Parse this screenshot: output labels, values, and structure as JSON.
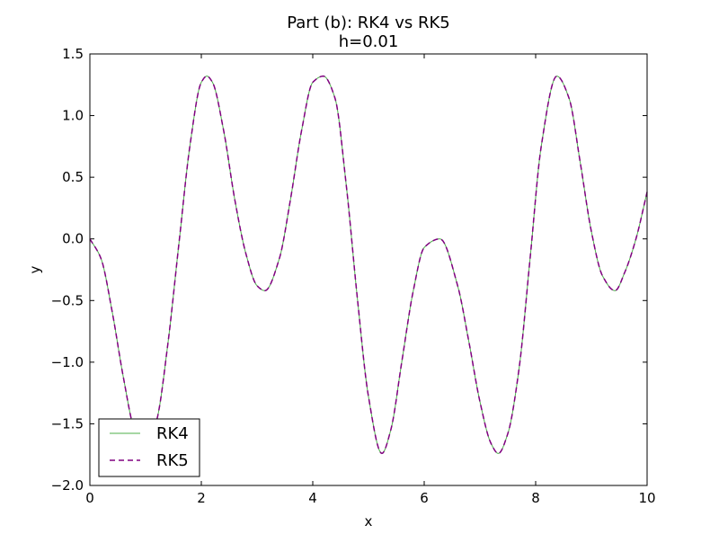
{
  "chart_data": {
    "type": "line",
    "title": "Part (b): RK4 vs RK5",
    "subtitle": "h=0.01",
    "xlabel": "x",
    "ylabel": "y",
    "xlim": [
      0,
      10
    ],
    "ylim": [
      -2.0,
      1.5
    ],
    "x_ticks": [
      "0",
      "2",
      "4",
      "6",
      "8",
      "10"
    ],
    "y_ticks": [
      "−2.0",
      "−1.5",
      "−1.0",
      "−0.5",
      "0.0",
      "0.5",
      "1.0",
      "1.5"
    ],
    "grid": false,
    "legend": "lower-left",
    "x": [
      0,
      0.2,
      0.4,
      0.6,
      0.8,
      1.0,
      1.2,
      1.4,
      1.6,
      1.8,
      2.0,
      2.1,
      2.2,
      2.4,
      2.6,
      2.8,
      3.0,
      3.1416,
      3.4,
      3.6,
      3.8,
      4.0,
      4.19,
      4.4,
      4.6,
      4.8,
      5.0,
      5.24,
      5.4,
      5.6,
      5.8,
      6.0,
      6.2832,
      6.6,
      6.8,
      7.0,
      7.2,
      7.33,
      7.5,
      7.7,
      7.9,
      8.1,
      8.38,
      8.6,
      8.8,
      9.0,
      9.2,
      9.4248,
      9.6,
      9.8,
      10.0
    ],
    "series": [
      {
        "name": "RK4",
        "color": "#4daf4a",
        "style": "solid",
        "values": [
          0.0,
          -0.16,
          -0.59,
          -1.12,
          -1.55,
          -1.7,
          -1.47,
          -0.85,
          -0.03,
          0.77,
          1.27,
          1.32,
          1.27,
          0.88,
          0.32,
          -0.12,
          -0.38,
          -0.42,
          -0.16,
          0.32,
          0.88,
          1.27,
          1.32,
          1.14,
          0.44,
          -0.48,
          -1.28,
          -1.74,
          -1.55,
          -0.99,
          -0.43,
          -0.07,
          0.0,
          -0.38,
          -0.83,
          -1.32,
          -1.66,
          -1.74,
          -1.58,
          -1.06,
          -0.16,
          0.75,
          1.32,
          1.14,
          0.62,
          0.06,
          -0.3,
          -0.42,
          -0.27,
          0.0,
          0.38
        ]
      },
      {
        "name": "RK5",
        "color": "#800080",
        "style": "dashed",
        "values": [
          0.0,
          -0.16,
          -0.59,
          -1.12,
          -1.55,
          -1.7,
          -1.47,
          -0.85,
          -0.03,
          0.77,
          1.27,
          1.32,
          1.27,
          0.88,
          0.32,
          -0.12,
          -0.38,
          -0.42,
          -0.16,
          0.32,
          0.88,
          1.27,
          1.32,
          1.14,
          0.44,
          -0.48,
          -1.28,
          -1.74,
          -1.55,
          -0.99,
          -0.43,
          -0.07,
          0.0,
          -0.38,
          -0.83,
          -1.32,
          -1.66,
          -1.74,
          -1.58,
          -1.06,
          -0.16,
          0.75,
          1.32,
          1.14,
          0.62,
          0.06,
          -0.3,
          -0.42,
          -0.27,
          0.0,
          0.38
        ]
      }
    ]
  }
}
